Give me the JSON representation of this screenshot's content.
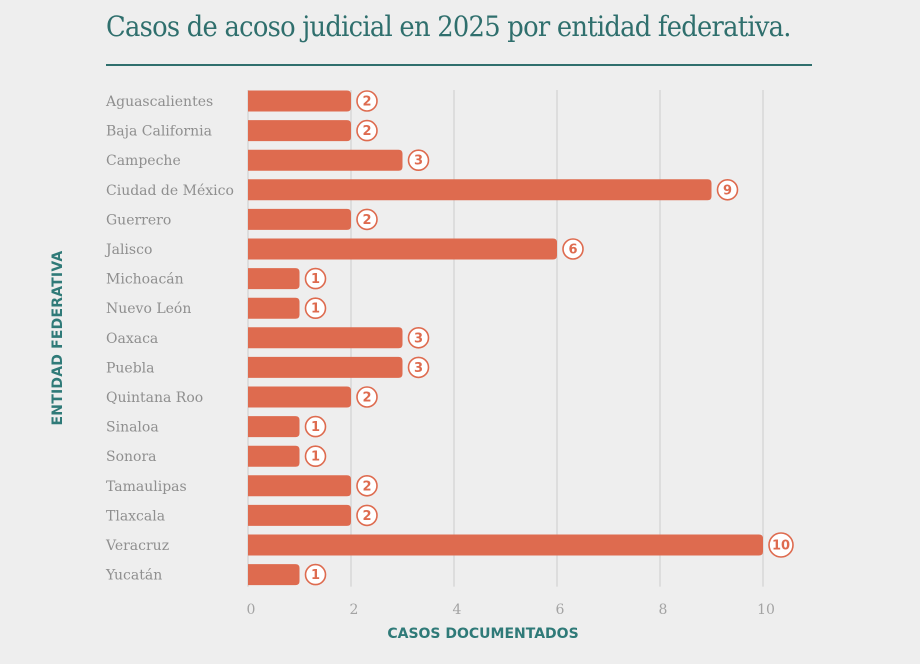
{
  "chart_data": {
    "type": "bar",
    "orientation": "horizontal",
    "title": "Casos de acoso judicial en 2025 por entidad federativa.",
    "xlabel": "CASOS DOCUMENTADOS",
    "ylabel": "ENTIDAD FEDERATIVA",
    "categories": [
      "Aguascalientes",
      "Baja California",
      "Campeche",
      "Ciudad de México",
      "Guerrero",
      "Jalisco",
      "Michoacán",
      "Nuevo León",
      "Oaxaca",
      "Puebla",
      "Quintana Roo",
      "Sinaloa",
      "Sonora",
      "Tamaulipas",
      "Tlaxcala",
      "Veracruz",
      "Yucatán"
    ],
    "values": [
      2,
      2,
      3,
      9,
      2,
      6,
      1,
      1,
      3,
      3,
      2,
      1,
      1,
      2,
      2,
      10,
      1
    ],
    "xlim": [
      0,
      10
    ],
    "xticks": [
      0,
      2,
      4,
      6,
      8,
      10
    ],
    "grid": true,
    "colors": {
      "bar": "#de6b4f",
      "label": "#de6b4f",
      "text_accent": "#2f6f6d",
      "grid": "#d2d2d2"
    }
  }
}
